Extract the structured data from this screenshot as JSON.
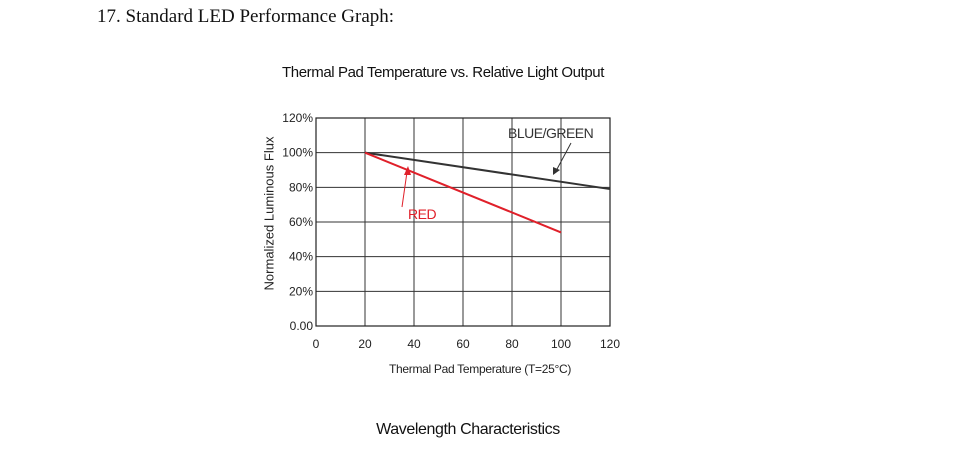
{
  "heading": "17. Standard LED Performance Graph:",
  "caption": "Wavelength Characteristics",
  "chart_data": {
    "type": "line",
    "title": "Thermal Pad Temperature vs. Relative Light Output",
    "xlabel": "Thermal Pad Temperature (T=25°C)",
    "ylabel": "Normalized Luminous Flux",
    "xlim": [
      0,
      120
    ],
    "ylim": [
      0,
      120
    ],
    "x_ticks": [
      0,
      20,
      40,
      60,
      80,
      100,
      120
    ],
    "x_tick_labels": [
      "0",
      "20",
      "40",
      "60",
      "80",
      "100",
      "120"
    ],
    "y_ticks": [
      0,
      20,
      40,
      60,
      80,
      100,
      120
    ],
    "y_tick_labels": [
      "0.00",
      "20%",
      "40%",
      "60%",
      "80%",
      "100%",
      "120%"
    ],
    "grid": true,
    "series": [
      {
        "name": "BLUE/GREEN",
        "color": "#333333",
        "x": [
          20,
          120
        ],
        "y": [
          100,
          79
        ]
      },
      {
        "name": "RED",
        "color": "#e0202a",
        "x": [
          20,
          100
        ],
        "y": [
          100,
          54
        ]
      }
    ]
  }
}
